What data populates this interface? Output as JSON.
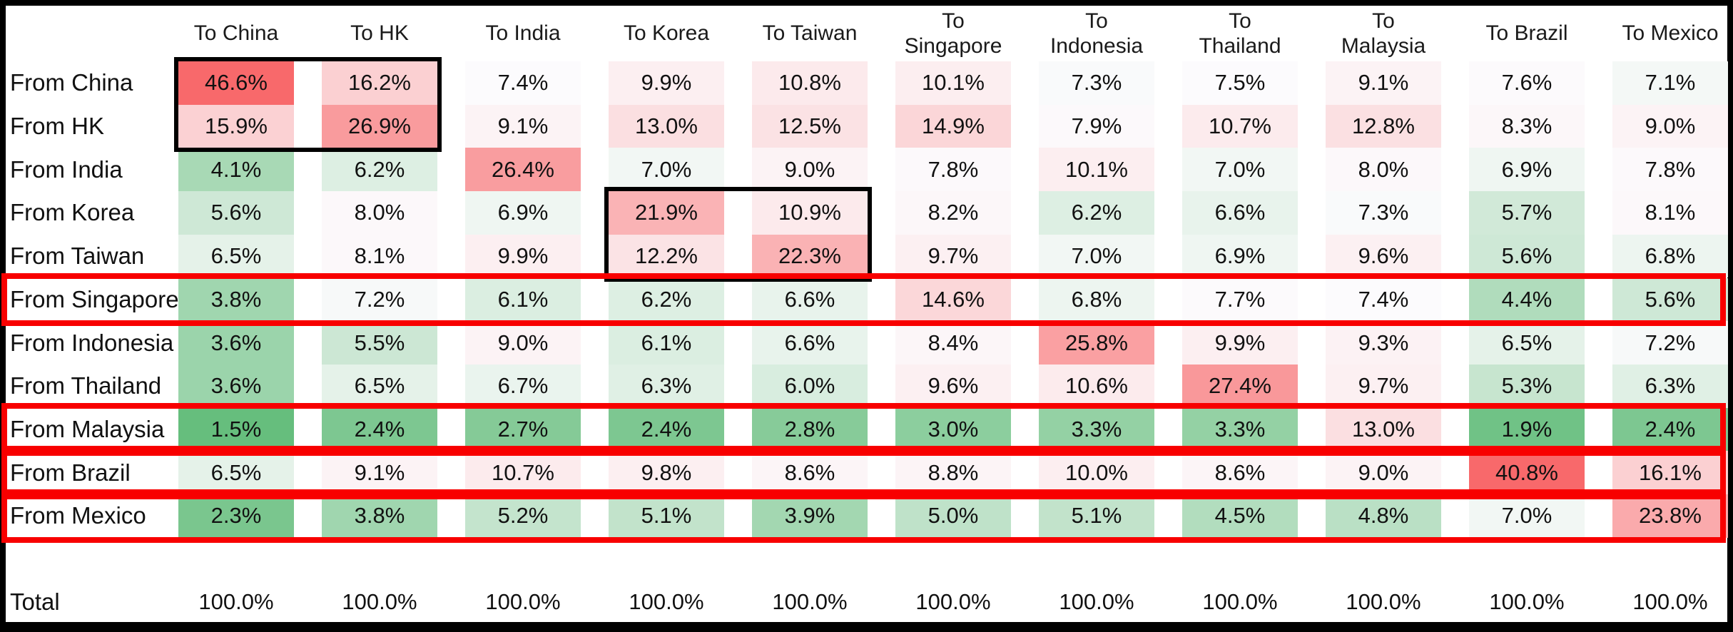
{
  "chart_data": {
    "type": "heatmap",
    "columns": [
      "To China",
      "To HK",
      "To India",
      "To Korea",
      "To Taiwan",
      "To Singapore",
      "To Indonesia",
      "To Thailand",
      "To Malaysia",
      "To Brazil",
      "To Mexico"
    ],
    "column_header_lines": [
      [
        "To China"
      ],
      [
        "To HK"
      ],
      [
        "To India"
      ],
      [
        "To Korea"
      ],
      [
        "To Taiwan"
      ],
      [
        "To",
        "Singapore"
      ],
      [
        "To",
        "Indonesia"
      ],
      [
        "To",
        "Thailand"
      ],
      [
        "To",
        "Malaysia"
      ],
      [
        "To Brazil"
      ],
      [
        "To Mexico"
      ]
    ],
    "rows": [
      "From China",
      "From HK",
      "From India",
      "From Korea",
      "From Taiwan",
      "From Singapore",
      "From Indonesia",
      "From Thailand",
      "From Malaysia",
      "From Brazil",
      "From Mexico"
    ],
    "values": [
      [
        46.6,
        16.2,
        7.4,
        9.9,
        10.8,
        10.1,
        7.3,
        7.5,
        9.1,
        7.6,
        7.1
      ],
      [
        15.9,
        26.9,
        9.1,
        13.0,
        12.5,
        14.9,
        7.9,
        10.7,
        12.8,
        8.3,
        9.0
      ],
      [
        4.1,
        6.2,
        26.4,
        7.0,
        9.0,
        7.8,
        10.1,
        7.0,
        8.0,
        6.9,
        7.8
      ],
      [
        5.6,
        8.0,
        6.9,
        21.9,
        10.9,
        8.2,
        6.2,
        6.6,
        7.3,
        5.7,
        8.1
      ],
      [
        6.5,
        8.1,
        9.9,
        12.2,
        22.3,
        9.7,
        7.0,
        6.9,
        9.6,
        5.6,
        6.8
      ],
      [
        3.8,
        7.2,
        6.1,
        6.2,
        6.6,
        14.6,
        6.8,
        7.7,
        7.4,
        4.4,
        5.6
      ],
      [
        3.6,
        5.5,
        9.0,
        6.1,
        6.6,
        8.4,
        25.8,
        9.9,
        9.3,
        6.5,
        7.2
      ],
      [
        3.6,
        6.5,
        6.7,
        6.3,
        6.0,
        9.6,
        10.6,
        27.4,
        9.7,
        5.3,
        6.3
      ],
      [
        1.5,
        2.4,
        2.7,
        2.4,
        2.8,
        3.0,
        3.3,
        3.3,
        13.0,
        1.9,
        2.4
      ],
      [
        6.5,
        9.1,
        10.7,
        9.8,
        8.6,
        8.8,
        10.0,
        8.6,
        9.0,
        40.8,
        16.1
      ],
      [
        2.3,
        3.8,
        5.2,
        5.1,
        3.9,
        5.0,
        5.1,
        4.5,
        4.8,
        7.0,
        23.8
      ]
    ],
    "value_suffix": "%",
    "value_decimals": 1,
    "total_row": {
      "label": "Total",
      "value": "100.0%"
    },
    "color_scale": {
      "low_color": "#66BE7D",
      "mid_color": "#FCFBFD",
      "high_color": "#F8696B",
      "low_anchor": "min",
      "mid_anchor": "median",
      "high_anchor": 37
    },
    "highlights": {
      "black_box_color": "#000000",
      "red_box_color": "#F80000",
      "black_boxes": [
        {
          "rows": [
            0,
            1
          ],
          "cols": [
            0,
            1
          ]
        },
        {
          "rows": [
            3,
            4
          ],
          "cols": [
            3,
            4
          ]
        }
      ],
      "red_row_boxes": [
        5,
        8,
        9,
        10
      ]
    },
    "legend_position": "none",
    "grid": false
  }
}
